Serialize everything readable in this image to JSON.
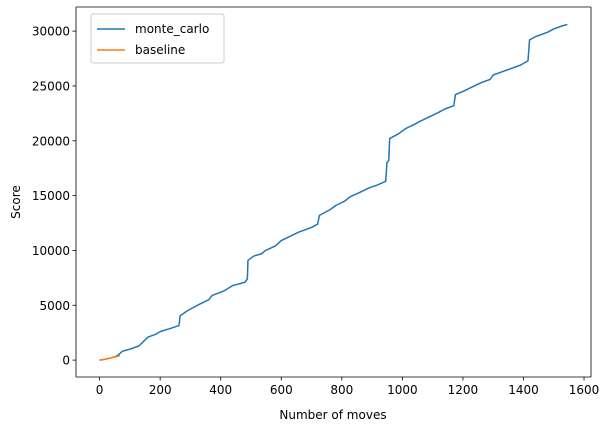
{
  "chart_data": {
    "type": "line",
    "xlabel": "Number of moves",
    "ylabel": "Score",
    "xlim": [
      -78,
      1623
    ],
    "ylim": [
      -1540,
      32200
    ],
    "xticks": [
      0,
      200,
      400,
      600,
      800,
      1000,
      1200,
      1400,
      1600
    ],
    "yticks": [
      0,
      5000,
      10000,
      15000,
      20000,
      25000,
      30000
    ],
    "grid": false,
    "legend_position": "top-left",
    "series": [
      {
        "name": "monte_carlo",
        "color": "#1f77b4",
        "points": [
          [
            0,
            0
          ],
          [
            20,
            90
          ],
          [
            40,
            220
          ],
          [
            55,
            350
          ],
          [
            65,
            560
          ],
          [
            75,
            800
          ],
          [
            100,
            1000
          ],
          [
            130,
            1300
          ],
          [
            145,
            1700
          ],
          [
            160,
            2100
          ],
          [
            185,
            2350
          ],
          [
            200,
            2600
          ],
          [
            235,
            2900
          ],
          [
            262,
            3150
          ],
          [
            266,
            4050
          ],
          [
            290,
            4500
          ],
          [
            330,
            5100
          ],
          [
            360,
            5500
          ],
          [
            372,
            5900
          ],
          [
            410,
            6300
          ],
          [
            440,
            6800
          ],
          [
            480,
            7100
          ],
          [
            488,
            7400
          ],
          [
            490,
            9100
          ],
          [
            510,
            9500
          ],
          [
            535,
            9700
          ],
          [
            548,
            10000
          ],
          [
            580,
            10400
          ],
          [
            600,
            10900
          ],
          [
            630,
            11300
          ],
          [
            660,
            11700
          ],
          [
            700,
            12100
          ],
          [
            720,
            12400
          ],
          [
            726,
            13200
          ],
          [
            760,
            13700
          ],
          [
            780,
            14100
          ],
          [
            810,
            14500
          ],
          [
            828,
            14900
          ],
          [
            860,
            15300
          ],
          [
            890,
            15700
          ],
          [
            920,
            16000
          ],
          [
            945,
            16300
          ],
          [
            949,
            18000
          ],
          [
            955,
            18200
          ],
          [
            958,
            20200
          ],
          [
            985,
            20600
          ],
          [
            1010,
            21100
          ],
          [
            1040,
            21500
          ],
          [
            1060,
            21800
          ],
          [
            1090,
            22200
          ],
          [
            1120,
            22600
          ],
          [
            1140,
            22900
          ],
          [
            1170,
            23200
          ],
          [
            1175,
            24200
          ],
          [
            1200,
            24500
          ],
          [
            1230,
            24900
          ],
          [
            1260,
            25300
          ],
          [
            1290,
            25600
          ],
          [
            1300,
            26000
          ],
          [
            1330,
            26300
          ],
          [
            1360,
            26600
          ],
          [
            1390,
            26900
          ],
          [
            1415,
            27300
          ],
          [
            1420,
            29200
          ],
          [
            1440,
            29500
          ],
          [
            1480,
            29900
          ],
          [
            1500,
            30200
          ],
          [
            1530,
            30500
          ],
          [
            1545,
            30600
          ]
        ]
      },
      {
        "name": "baseline",
        "color": "#ff7f0e",
        "points": [
          [
            0,
            0
          ],
          [
            15,
            60
          ],
          [
            30,
            150
          ],
          [
            45,
            250
          ],
          [
            60,
            350
          ],
          [
            67,
            400
          ]
        ]
      }
    ]
  }
}
